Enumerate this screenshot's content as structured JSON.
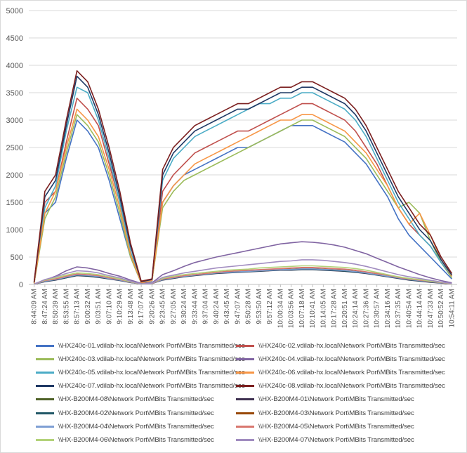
{
  "chart_data": {
    "type": "line",
    "title": "",
    "xlabel": "",
    "ylabel": "",
    "ylim": [
      0,
      5000
    ],
    "yticks": [
      0,
      500,
      1000,
      1500,
      2000,
      2500,
      3000,
      3500,
      4000,
      4500,
      5000
    ],
    "grid": true,
    "legend_position": "bottom",
    "x": [
      "8:44:09 AM",
      "8:47:24 AM",
      "8:50:39 AM",
      "8:53:55 AM",
      "8:57:13 AM",
      "9:00:32 AM",
      "9:03:51 AM",
      "9:07:10 AM",
      "9:10:29 AM",
      "9:13:48 AM",
      "9:17:07 AM",
      "9:20:26 AM",
      "9:23:45 AM",
      "9:27:05 AM",
      "9:30:24 AM",
      "9:33:44 AM",
      "9:37:04 AM",
      "9:40:24 AM",
      "9:43:45 AM",
      "9:47:07 AM",
      "9:50:28 AM",
      "9:53:50 AM",
      "9:57:12 AM",
      "10:00:34 AM",
      "10:03:56 AM",
      "10:07:18 AM",
      "10:10:41 AM",
      "10:14:05 AM",
      "10:17:28 AM",
      "10:20:51 AM",
      "10:24:14 AM",
      "10:27:36 AM",
      "10:30:57 AM",
      "10:34:16 AM",
      "10:37:35 AM",
      "10:40:54 AM",
      "10:44:14 AM",
      "10:47:33 AM",
      "10:50:52 AM",
      "10:54:11 AM"
    ],
    "series": [
      {
        "name": "\\\\HX240c-01.vdilab-hx.local\\Network Port\\MBits Transmitted/sec",
        "color": "#4472c4",
        "values": [
          20,
          1300,
          1500,
          2300,
          3000,
          2800,
          2500,
          1900,
          1200,
          500,
          30,
          60,
          1500,
          1800,
          2000,
          2100,
          2200,
          2300,
          2400,
          2500,
          2500,
          2600,
          2700,
          2800,
          2900,
          2900,
          2900,
          2800,
          2700,
          2600,
          2400,
          2200,
          1900,
          1600,
          1200,
          900,
          700,
          500,
          300,
          100
        ]
      },
      {
        "name": "\\\\HX240c-02.vdilab-hx.local\\Network Port\\MBits Transmitted/sec",
        "color": "#c0504d",
        "values": [
          30,
          1500,
          1700,
          2600,
          3400,
          3200,
          2900,
          2200,
          1500,
          600,
          40,
          80,
          1700,
          2000,
          2200,
          2400,
          2500,
          2600,
          2700,
          2800,
          2800,
          2900,
          3000,
          3100,
          3200,
          3300,
          3300,
          3200,
          3100,
          3000,
          2800,
          2500,
          2200,
          1800,
          1400,
          1100,
          900,
          700,
          400,
          150
        ]
      },
      {
        "name": "\\\\HX240c-03.vdilab-hx.local\\Network Port\\MBits Transmitted/sec",
        "color": "#9bbb59",
        "values": [
          20,
          1200,
          1600,
          2400,
          3100,
          2900,
          2600,
          2000,
          1300,
          500,
          30,
          70,
          1400,
          1700,
          1900,
          2000,
          2100,
          2200,
          2300,
          2400,
          2500,
          2600,
          2700,
          2800,
          2900,
          3000,
          3000,
          2900,
          2800,
          2700,
          2500,
          2300,
          2000,
          1700,
          1400,
          1500,
          1300,
          800,
          400,
          120
        ]
      },
      {
        "name": "\\\\HX240c-04.vdilab-hx.local\\Network Port\\MBits Transmitted/sec",
        "color": "#8064a2",
        "values": [
          10,
          80,
          150,
          250,
          320,
          300,
          260,
          200,
          150,
          80,
          20,
          30,
          180,
          250,
          330,
          400,
          450,
          500,
          540,
          580,
          620,
          660,
          700,
          740,
          760,
          780,
          770,
          750,
          720,
          680,
          620,
          560,
          480,
          400,
          320,
          250,
          180,
          120,
          70,
          30
        ]
      },
      {
        "name": "\\\\HX240c-05.vdilab-hx.local\\Network Port\\MBits Transmitted/sec",
        "color": "#4bacc6",
        "values": [
          30,
          1400,
          1800,
          2800,
          3600,
          3500,
          3000,
          2300,
          1500,
          600,
          40,
          80,
          1900,
          2300,
          2500,
          2700,
          2800,
          2900,
          3000,
          3100,
          3200,
          3300,
          3300,
          3400,
          3400,
          3500,
          3500,
          3400,
          3300,
          3200,
          3000,
          2700,
          2300,
          1900,
          1500,
          1200,
          900,
          700,
          400,
          150
        ]
      },
      {
        "name": "\\\\HX240c-06.vdilab-hx.local\\Network Port\\MBits Transmitted/sec",
        "color": "#f79646",
        "values": [
          20,
          1300,
          1700,
          2500,
          3200,
          3000,
          2700,
          2100,
          1400,
          550,
          30,
          70,
          1500,
          1800,
          2000,
          2200,
          2300,
          2400,
          2500,
          2600,
          2700,
          2800,
          2900,
          3000,
          3000,
          3100,
          3100,
          3000,
          2900,
          2800,
          2600,
          2400,
          2100,
          1800,
          1400,
          1100,
          1300,
          900,
          450,
          150
        ]
      },
      {
        "name": "\\\\HX240c-07.vdilab-hx.local\\Network Port\\MBits Transmitted/sec",
        "color": "#1f3864",
        "values": [
          40,
          1600,
          1900,
          2900,
          3800,
          3600,
          3100,
          2400,
          1600,
          700,
          50,
          90,
          2000,
          2400,
          2600,
          2800,
          2900,
          3000,
          3100,
          3200,
          3200,
          3300,
          3400,
          3500,
          3500,
          3600,
          3600,
          3500,
          3400,
          3300,
          3100,
          2800,
          2400,
          2000,
          1600,
          1300,
          1000,
          800,
          450,
          170
        ]
      },
      {
        "name": "\\\\HX240c-08.vdilab-hx.local\\Network Port\\MBits Transmitted/sec",
        "color": "#7b1f1f",
        "values": [
          50,
          1700,
          2000,
          3000,
          3900,
          3700,
          3200,
          2500,
          1700,
          750,
          60,
          100,
          2100,
          2500,
          2700,
          2900,
          3000,
          3100,
          3200,
          3300,
          3300,
          3400,
          3500,
          3600,
          3600,
          3700,
          3700,
          3600,
          3500,
          3400,
          3200,
          2900,
          2500,
          2100,
          1700,
          1400,
          1100,
          900,
          500,
          200
        ]
      },
      {
        "name": "\\\\HX-B200M4-08\\Network Port\\MBits Transmitted/sec",
        "color": "#4f6228",
        "values": [
          5,
          60,
          90,
          130,
          170,
          160,
          140,
          110,
          80,
          40,
          10,
          15,
          90,
          120,
          150,
          170,
          190,
          210,
          220,
          230,
          240,
          250,
          260,
          270,
          270,
          280,
          280,
          270,
          260,
          250,
          230,
          210,
          180,
          150,
          120,
          90,
          70,
          50,
          30,
          10
        ]
      },
      {
        "name": "\\\\HX-B200M4-01\\Network Port\\MBits Transmitted/sec",
        "color": "#3f3151",
        "values": [
          5,
          50,
          80,
          120,
          160,
          150,
          130,
          100,
          70,
          35,
          10,
          15,
          80,
          110,
          140,
          160,
          180,
          200,
          210,
          220,
          230,
          240,
          250,
          260,
          260,
          270,
          270,
          260,
          250,
          240,
          220,
          200,
          170,
          140,
          110,
          80,
          60,
          40,
          25,
          10
        ]
      },
      {
        "name": "\\\\HX-B200M4-02\\Network Port\\MBits Transmitted/sec",
        "color": "#215867",
        "values": [
          5,
          55,
          85,
          125,
          165,
          155,
          135,
          105,
          75,
          38,
          10,
          15,
          85,
          115,
          145,
          165,
          185,
          205,
          215,
          225,
          235,
          245,
          255,
          265,
          265,
          275,
          275,
          265,
          255,
          245,
          225,
          205,
          175,
          145,
          115,
          85,
          65,
          45,
          28,
          10
        ]
      },
      {
        "name": "\\\\HX-B200M4-03\\Network Port\\MBits Transmitted/sec",
        "color": "#984807",
        "values": [
          5,
          65,
          95,
          140,
          180,
          170,
          150,
          115,
          85,
          42,
          10,
          15,
          95,
          125,
          155,
          175,
          195,
          215,
          225,
          235,
          245,
          255,
          265,
          275,
          280,
          290,
          290,
          280,
          270,
          260,
          240,
          215,
          185,
          155,
          125,
          95,
          75,
          55,
          32,
          12
        ]
      },
      {
        "name": "\\\\HX-B200M4-04\\Network Port\\MBits Transmitted/sec",
        "color": "#7f9fd4",
        "values": [
          5,
          60,
          90,
          135,
          175,
          165,
          145,
          110,
          80,
          40,
          10,
          15,
          90,
          120,
          150,
          170,
          190,
          210,
          220,
          230,
          240,
          250,
          260,
          270,
          275,
          285,
          285,
          275,
          265,
          255,
          235,
          210,
          180,
          150,
          120,
          90,
          70,
          50,
          30,
          10
        ]
      },
      {
        "name": "\\\\HX-B200M4-05\\Network Port\\MBits Transmitted/sec",
        "color": "#d9776f",
        "values": [
          5,
          70,
          100,
          150,
          190,
          180,
          160,
          120,
          90,
          45,
          10,
          15,
          100,
          130,
          160,
          180,
          200,
          220,
          240,
          250,
          260,
          270,
          280,
          290,
          300,
          310,
          310,
          300,
          290,
          280,
          260,
          230,
          200,
          170,
          130,
          100,
          80,
          55,
          35,
          12
        ]
      },
      {
        "name": "\\\\HX-B200M4-06\\Network Port\\MBits Transmitted/sec",
        "color": "#b3d27a",
        "values": [
          5,
          80,
          120,
          170,
          210,
          200,
          180,
          140,
          100,
          50,
          10,
          20,
          110,
          150,
          180,
          200,
          220,
          240,
          260,
          270,
          280,
          300,
          310,
          320,
          330,
          340,
          340,
          330,
          320,
          310,
          290,
          260,
          220,
          180,
          140,
          110,
          90,
          60,
          40,
          15
        ]
      },
      {
        "name": "\\\\HX-B200M4-07\\Network Port\\MBits Transmitted/sec",
        "color": "#a18cc0",
        "values": [
          5,
          90,
          140,
          200,
          250,
          240,
          210,
          160,
          120,
          60,
          10,
          20,
          130,
          170,
          210,
          240,
          270,
          300,
          320,
          340,
          360,
          380,
          400,
          420,
          430,
          450,
          450,
          440,
          420,
          400,
          370,
          330,
          280,
          230,
          180,
          140,
          110,
          75,
          45,
          18
        ]
      }
    ]
  }
}
